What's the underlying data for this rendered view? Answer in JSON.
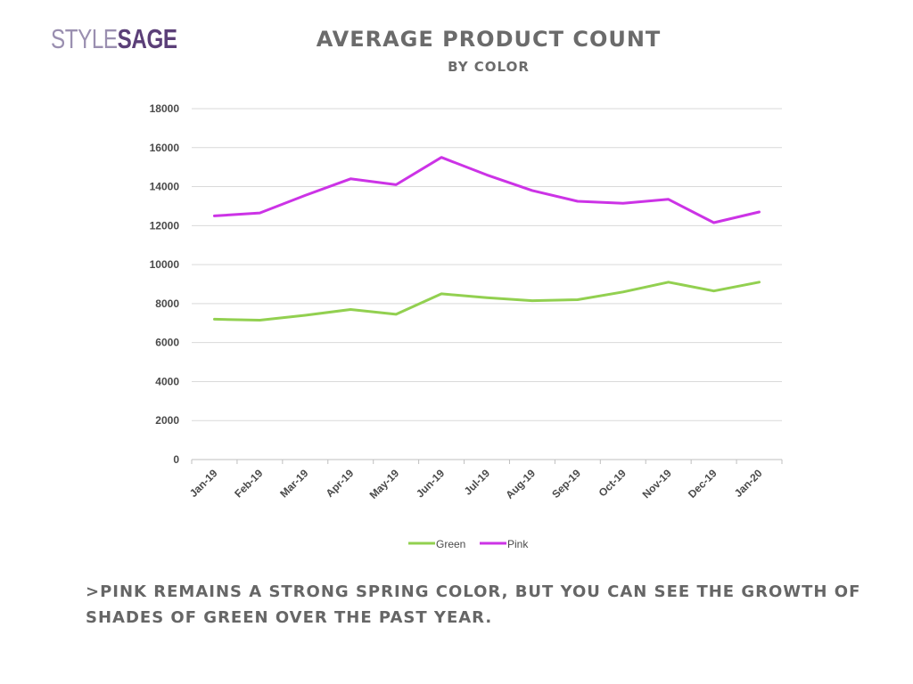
{
  "logo": {
    "part1": "STYLE",
    "part2": "SAGE"
  },
  "header": {
    "title": "AVERAGE PRODUCT COUNT",
    "subtitle": "BY COLOR"
  },
  "caption": ">PINK REMAINS A STRONG SPRING COLOR, BUT YOU CAN SEE THE GROWTH OF SHADES OF GREEN OVER THE PAST YEAR.",
  "chart_data": {
    "type": "line",
    "title": "AVERAGE PRODUCT COUNT",
    "subtitle": "BY COLOR",
    "xlabel": "",
    "ylabel": "",
    "categories": [
      "Jan-19",
      "Feb-19",
      "Mar-19",
      "Apr-19",
      "May-19",
      "Jun-19",
      "Jul-19",
      "Aug-19",
      "Sep-19",
      "Oct-19",
      "Nov-19",
      "Dec-19",
      "Jan-20"
    ],
    "ylim": [
      0,
      18000
    ],
    "yticks": [
      0,
      2000,
      4000,
      6000,
      8000,
      10000,
      12000,
      14000,
      16000,
      18000
    ],
    "grid": true,
    "legend": "bottom",
    "series": [
      {
        "name": "Green",
        "color": "#92d050",
        "values": [
          7200,
          7150,
          7400,
          7700,
          7450,
          8500,
          8300,
          8150,
          8200,
          8600,
          9100,
          8650,
          9100
        ]
      },
      {
        "name": "Pink",
        "color": "#cc33e6",
        "values": [
          12500,
          12650,
          13550,
          14400,
          14100,
          15500,
          14600,
          13800,
          13250,
          13150,
          13350,
          12150,
          12700
        ]
      }
    ]
  }
}
